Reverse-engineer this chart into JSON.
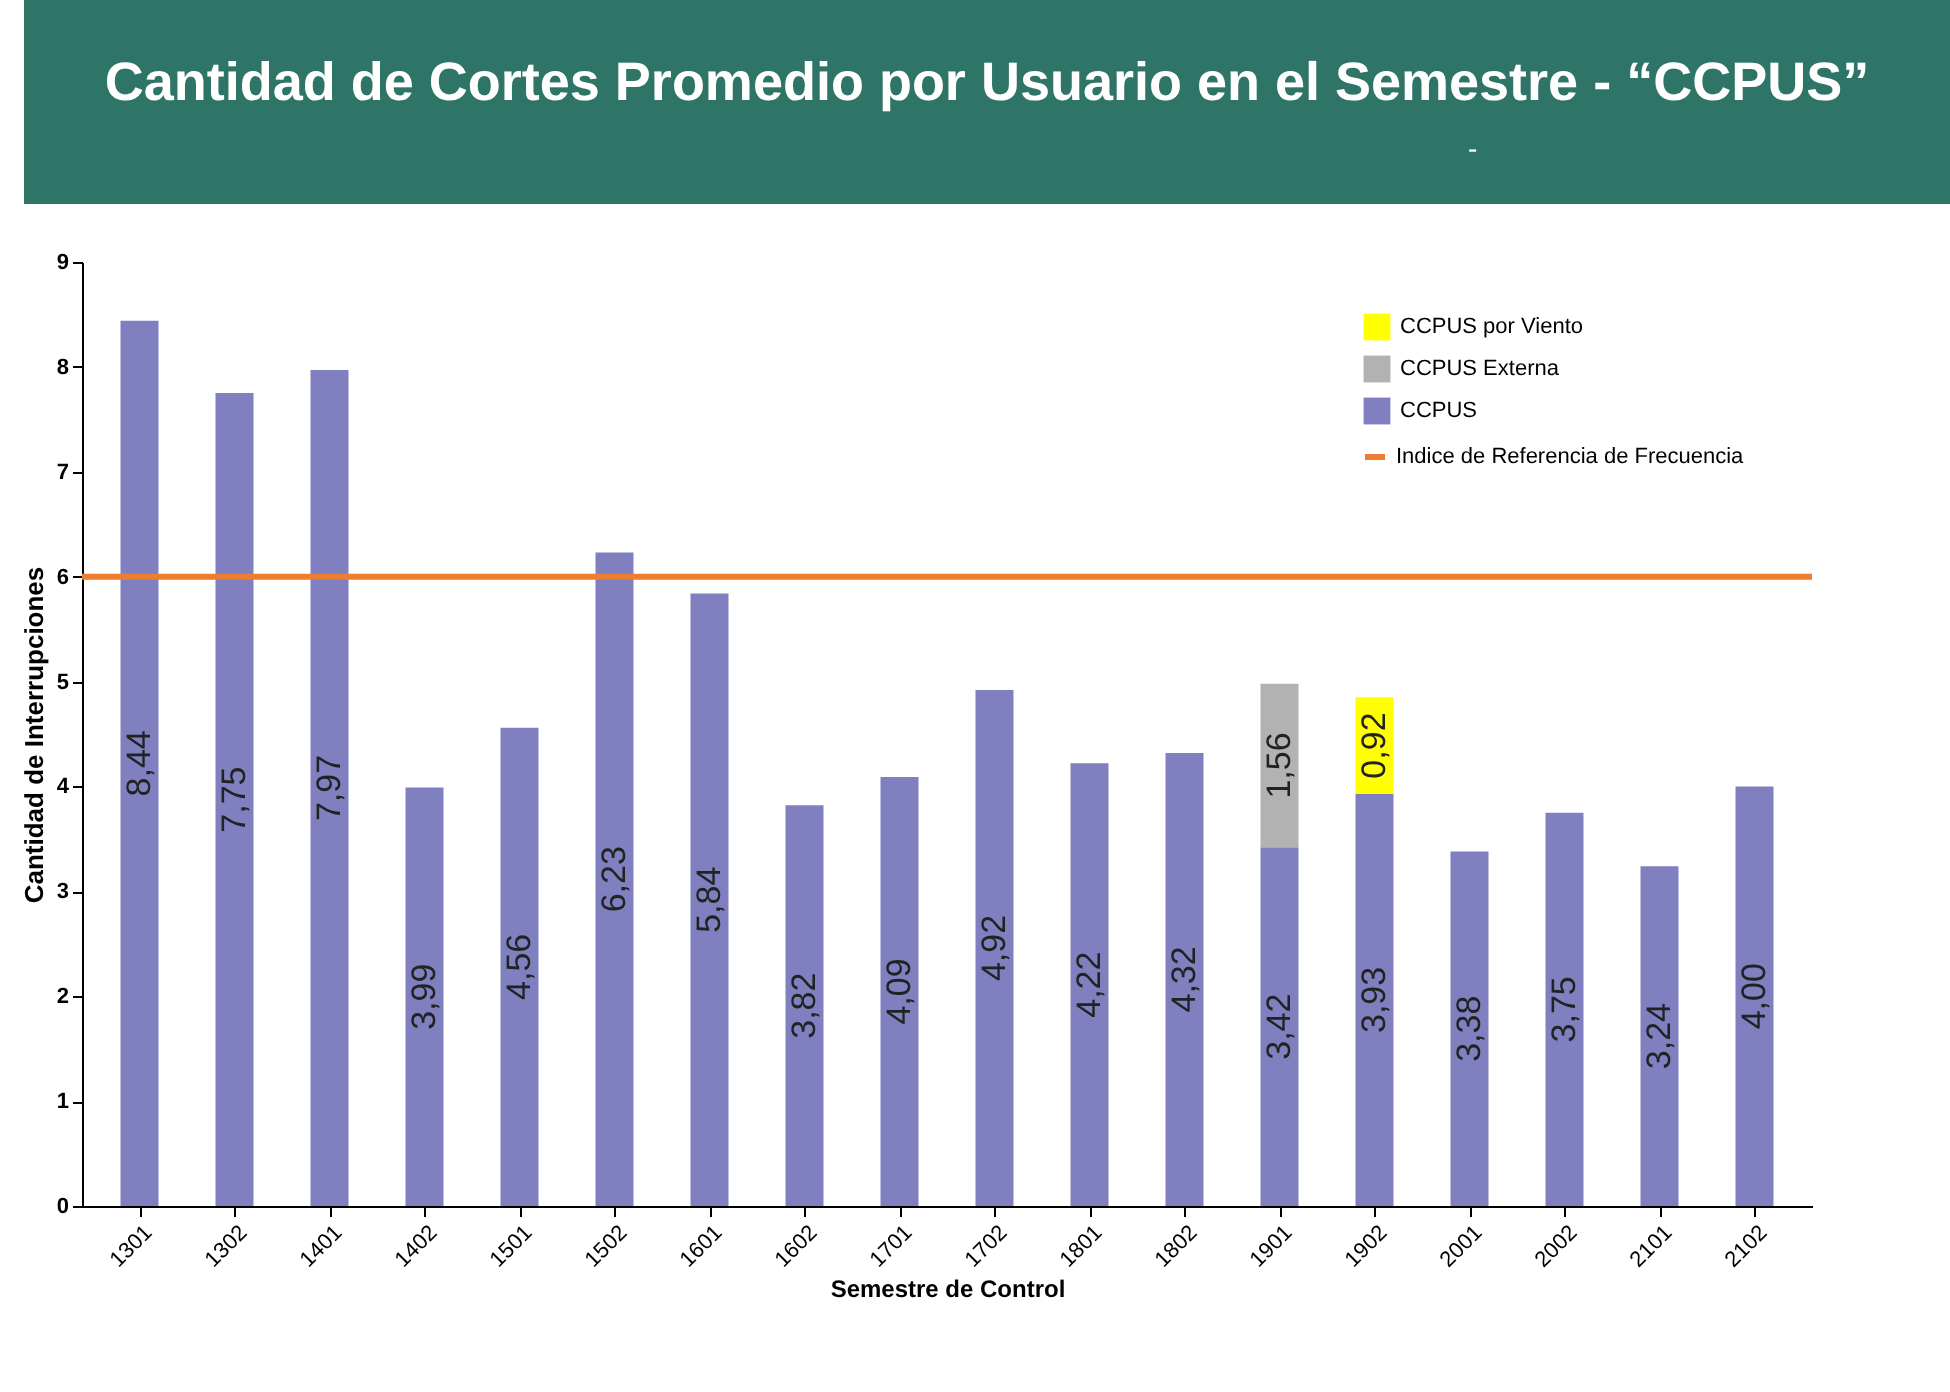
{
  "chart_data": {
    "type": "bar",
    "title": "Cantidad de Cortes Promedio por Usuario en el Semestre - “CCPUS”",
    "subtitle": "-",
    "xlabel": "Semestre de Control",
    "ylabel": "Cantidad de Interrupciones",
    "categories": [
      "1301",
      "1302",
      "1401",
      "1402",
      "1501",
      "1502",
      "1601",
      "1602",
      "1701",
      "1702",
      "1801",
      "1802",
      "1901",
      "1902",
      "2001",
      "2002",
      "2101",
      "2102"
    ],
    "stacked": true,
    "series": [
      {
        "name": "CCPUS",
        "color": "#8080c0",
        "values": [
          8.44,
          7.75,
          7.97,
          3.99,
          4.56,
          6.23,
          5.84,
          3.82,
          4.09,
          4.92,
          4.22,
          4.32,
          3.42,
          3.93,
          3.38,
          3.75,
          3.24,
          4.0
        ],
        "value_labels": [
          "8,44",
          "7,75",
          "7,97",
          "3,99",
          "4,56",
          "6,23",
          "5,84",
          "3,82",
          "4,09",
          "4,92",
          "4,22",
          "4,32",
          "3,42",
          "3,93",
          "3,38",
          "3,75",
          "3,24",
          "4,00"
        ]
      },
      {
        "name": "CCPUS Externa",
        "color": "#b2b2b2",
        "values": [
          null,
          null,
          null,
          null,
          null,
          null,
          null,
          null,
          null,
          null,
          null,
          null,
          1.56,
          null,
          null,
          null,
          null,
          null
        ],
        "value_labels": [
          null,
          null,
          null,
          null,
          null,
          null,
          null,
          null,
          null,
          null,
          null,
          null,
          "1,56",
          null,
          null,
          null,
          null,
          null
        ]
      },
      {
        "name": "CCPUS por Viento",
        "color": "#ffff00",
        "values": [
          null,
          null,
          null,
          null,
          null,
          null,
          null,
          null,
          null,
          null,
          null,
          null,
          null,
          0.92,
          null,
          null,
          null,
          null
        ],
        "value_labels": [
          null,
          null,
          null,
          null,
          null,
          null,
          null,
          null,
          null,
          null,
          null,
          null,
          null,
          "0,92",
          null,
          null,
          null,
          null
        ]
      }
    ],
    "ref_lines": [
      {
        "axis": "y",
        "value": 6,
        "label": "Indice de Referencia de Frecuencia",
        "color": "#ed7d31"
      }
    ],
    "ylim": [
      0,
      9
    ],
    "yticks": [
      0,
      1,
      2,
      3,
      4,
      5,
      6,
      7,
      8,
      9
    ],
    "grid": false,
    "legend": "top right"
  }
}
